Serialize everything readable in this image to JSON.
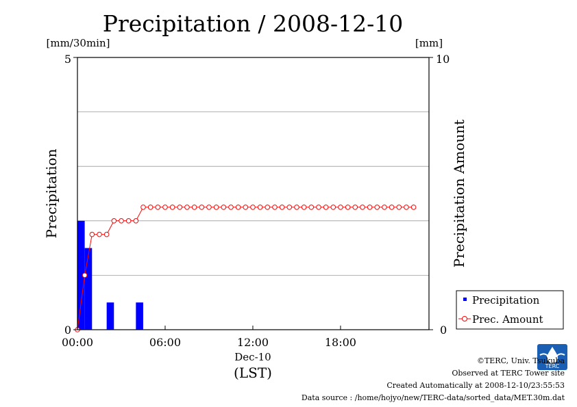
{
  "chart_data": {
    "type": "bar",
    "title": "Precipitation / 2008-12-10",
    "ylabel": "Precipitation",
    "ylabel_unit": "[mm/30min]",
    "y2label": "Precipitation Amount",
    "y2label_unit": "[mm]",
    "xlabel_date": "Dec-10",
    "xlabel_tz": "(LST)",
    "ylim": [
      0,
      5
    ],
    "y2lim": [
      0,
      10
    ],
    "y_ticks": [
      "0",
      "5"
    ],
    "y2_ticks": [
      "0",
      "10"
    ],
    "x_ticks": [
      "00:00",
      "06:00",
      "12:00",
      "18:00"
    ],
    "x_tick_hours": [
      0,
      6,
      12,
      18
    ],
    "grid": true,
    "legend_position": "bottom-right",
    "series": [
      {
        "name": "Precipitation",
        "type": "bar",
        "color": "#0000ff",
        "x_hours": [
          0.0,
          0.5,
          2.0,
          4.0
        ],
        "values": [
          2.0,
          1.5,
          0.5,
          0.5
        ]
      },
      {
        "name": "Prec. Amount",
        "type": "line",
        "marker": "open-circle",
        "color": "#ff0000",
        "x_hours": [
          0.0,
          0.5,
          1.0,
          1.5,
          2.0,
          2.5,
          3.0,
          3.5,
          4.0,
          4.5,
          5.0,
          5.5,
          6.0,
          6.5,
          7.0,
          7.5,
          8.0,
          8.5,
          9.0,
          9.5,
          10.0,
          10.5,
          11.0,
          11.5,
          12.0,
          12.5,
          13.0,
          13.5,
          14.0,
          14.5,
          15.0,
          15.5,
          16.0,
          16.5,
          17.0,
          17.5,
          18.0,
          18.5,
          19.0,
          19.5,
          20.0,
          20.5,
          21.0,
          21.5,
          22.0,
          22.5,
          23.0
        ],
        "values": [
          0.0,
          2.0,
          3.5,
          3.5,
          3.5,
          4.0,
          4.0,
          4.0,
          4.0,
          4.5,
          4.5,
          4.5,
          4.5,
          4.5,
          4.5,
          4.5,
          4.5,
          4.5,
          4.5,
          4.5,
          4.5,
          4.5,
          4.5,
          4.5,
          4.5,
          4.5,
          4.5,
          4.5,
          4.5,
          4.5,
          4.5,
          4.5,
          4.5,
          4.5,
          4.5,
          4.5,
          4.5,
          4.5,
          4.5,
          4.5,
          4.5,
          4.5,
          4.5,
          4.5,
          4.5,
          4.5,
          4.5
        ]
      }
    ]
  },
  "footer": {
    "copyright": "©TERC, Univ. Tsukuba",
    "observed": "Observed at TERC Tower site",
    "created": "Created Automatically at 2008-12-10/23:55:53",
    "source": "Data source : /home/hojyo/new/TERC-data/sorted_data/MET.30m.dat",
    "logo_text": "TERC"
  }
}
